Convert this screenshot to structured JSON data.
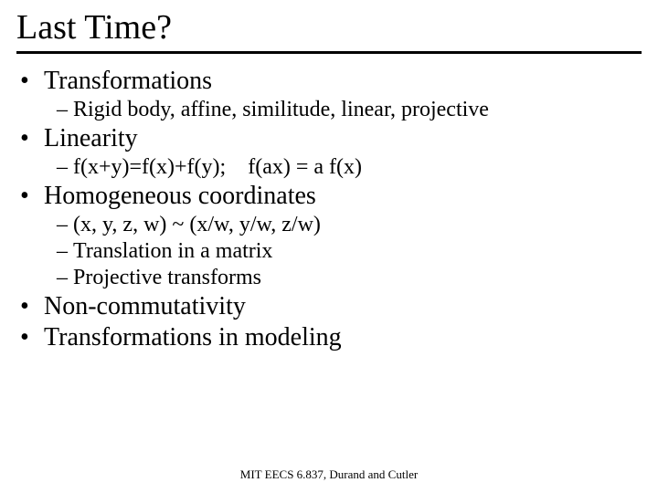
{
  "title": "Last Time?",
  "bullets": {
    "b1": {
      "dot": "•",
      "text": "Transformations"
    },
    "b1s1": {
      "dash": "–",
      "text": "Rigid body, affine, similitude, linear, projective"
    },
    "b2": {
      "dot": "•",
      "text": "Linearity"
    },
    "b2s1": {
      "dash": "–",
      "text": "f(x+y)=f(x)+f(y);    f(ax) = a f(x)"
    },
    "b3": {
      "dot": "•",
      "text": "Homogeneous coordinates"
    },
    "b3s1": {
      "dash": "–",
      "text": "(x, y, z, w) ~ (x/w, y/w, z/w)"
    },
    "b3s2": {
      "dash": "–",
      "text": "Translation in a matrix"
    },
    "b3s3": {
      "dash": "–",
      "text": "Projective transforms"
    },
    "b4": {
      "dot": "•",
      "text": "Non-commutativity"
    },
    "b5": {
      "dot": "•",
      "text": "Transformations in modeling"
    }
  },
  "footer": "MIT EECS 6.837, Durand and Cutler"
}
